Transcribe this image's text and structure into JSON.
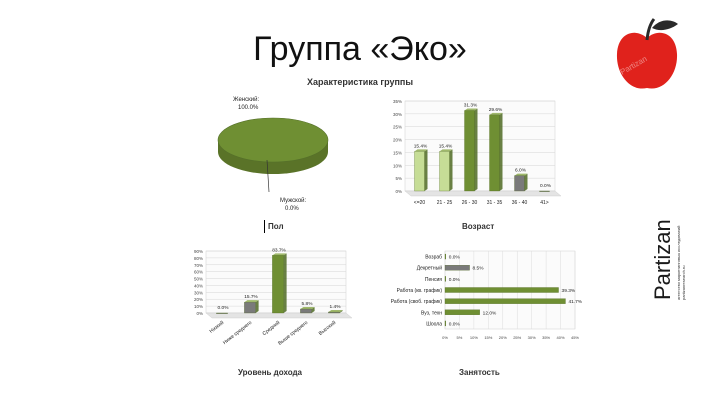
{
  "slide": {
    "title": "Группа «Эко»",
    "subtitle": "Характеристика группы"
  },
  "captions": {
    "gender": "Пол",
    "age": "Возраст",
    "income": "Уровень дохода",
    "occupation": "Занятость"
  },
  "brand": {
    "name": "Partizan",
    "tagline1": "агентство маркетинговых исследований",
    "tagline2": "partizanresearch.ru",
    "watermark": "Partizan"
  },
  "colors": {
    "green": "#6f8f33",
    "light_green": "#c6dd96",
    "grey": "#7a7a7a",
    "apple_red": "#e0221c",
    "leaf": "#2a2a2a"
  },
  "chart_data": [
    {
      "id": "gender",
      "type": "pie",
      "categories": [
        "Женский",
        "Мужской"
      ],
      "values": [
        100.0,
        0.0
      ],
      "labels": [
        "Женский:\n100.0%",
        "Мужской:\n0.0%"
      ]
    },
    {
      "id": "age",
      "type": "bar",
      "categories": [
        "<=20",
        "21 - 25",
        "26 - 30",
        "31 - 35",
        "36 - 40",
        "41>"
      ],
      "values": [
        15.4,
        15.4,
        31.3,
        29.6,
        6.0,
        0.0
      ],
      "value_labels": [
        "15.4%",
        "15.4%",
        "31.3%",
        "29.6%",
        "6.0%",
        "0.0%"
      ],
      "ylim": [
        0,
        35
      ],
      "yticks": [
        "0%",
        "5%",
        "10%",
        "15%",
        "20%",
        "25%",
        "30%",
        "35%"
      ]
    },
    {
      "id": "income",
      "type": "bar",
      "categories": [
        "Низкий",
        "Ниже среднего",
        "Средний",
        "Выше среднего",
        "Высокий"
      ],
      "values": [
        0.0,
        15.7,
        83.7,
        5.8,
        1.4
      ],
      "value_labels": [
        "0.0%",
        "15.7%",
        "83.7%",
        "5.8%",
        "1.4%"
      ],
      "ylim": [
        0,
        90
      ],
      "yticks": [
        "0%",
        "10%",
        "20%",
        "30%",
        "40%",
        "50%",
        "60%",
        "70%",
        "80%",
        "90%"
      ]
    },
    {
      "id": "occupation",
      "type": "bar",
      "orientation": "horizontal",
      "categories": [
        "Шоола",
        "Вуз, техн",
        "Работа (своб. график)",
        "Работа (кв. график)",
        "Пенсия",
        "Декретный",
        "Возраб"
      ],
      "values": [
        0.0,
        12.0,
        41.7,
        39.3,
        0.0,
        8.5,
        0.0
      ],
      "value_labels": [
        "0.0%",
        "12.0%",
        "41.7%",
        "39.3%",
        "0.0%",
        "8.5%",
        "0.0%"
      ],
      "xlim": [
        0,
        45
      ],
      "xticks": [
        "0%",
        "5%",
        "10%",
        "15%",
        "20%",
        "25%",
        "30%",
        "35%",
        "40%",
        "45%"
      ]
    }
  ]
}
